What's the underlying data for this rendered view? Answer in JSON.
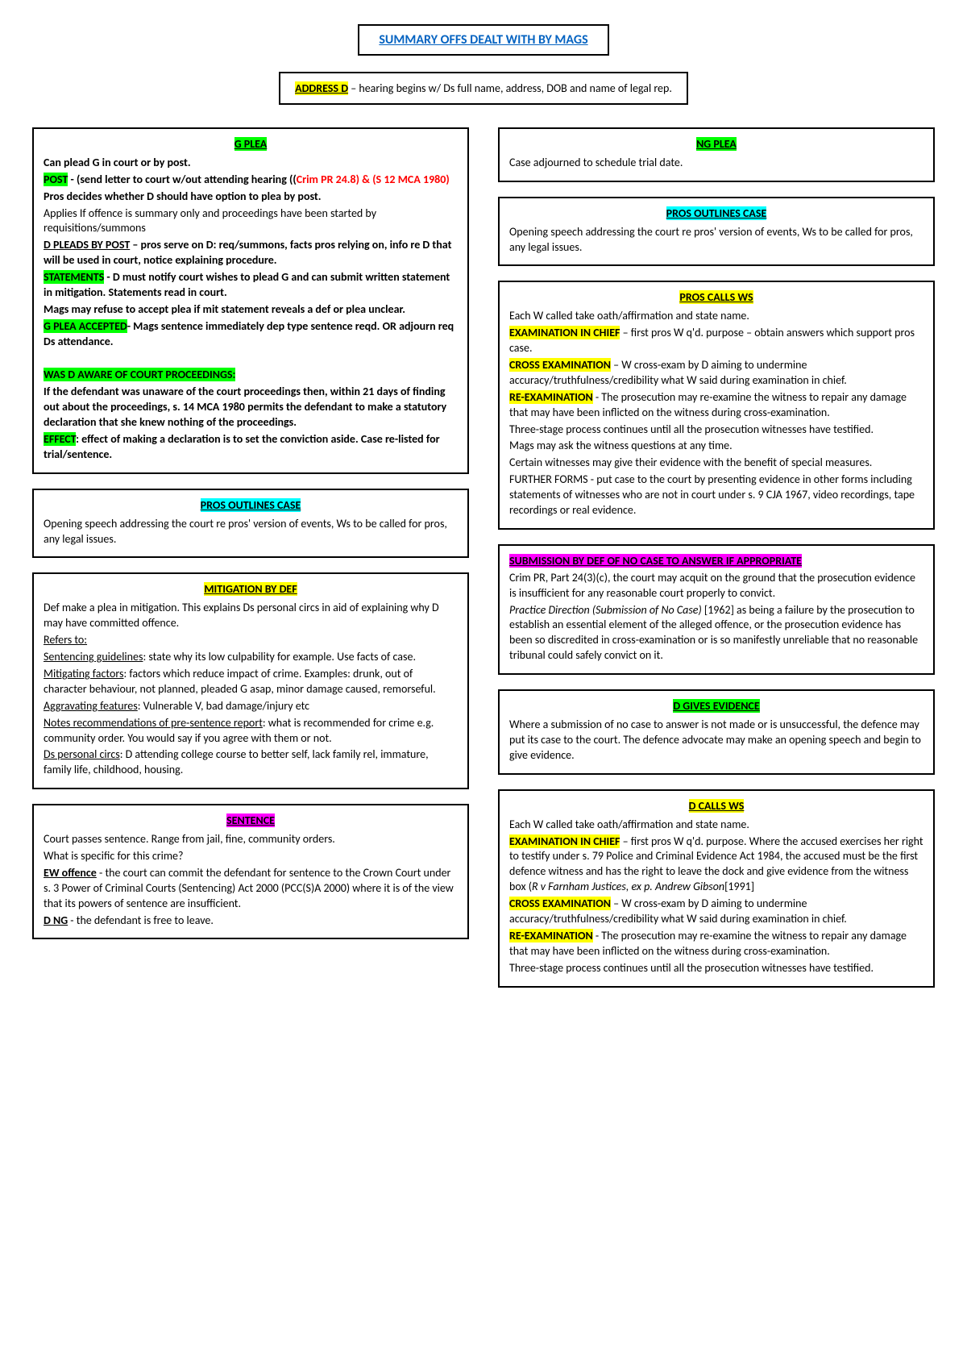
{
  "title": "SUMMARY OFFS DEALT WITH BY MAGS",
  "address": {
    "label": "ADDRESS D",
    "text": " – hearing begins w/ Ds full name, address, DOB and name of legal rep."
  },
  "gplea": {
    "h": "G PLEA",
    "L1": "Can plead G in court or by post.",
    "post_lbl": "POST",
    "post_a": " - (send letter to court w/out attending hearing ((",
    "post_red": "Crim PR 24.8) & (S 12 MCA 1980)",
    "L2": "Pros decides whether D should have option to plea by post.",
    "L3": "Applies If offence is summary only and proceedings have been started by requisitions/summons",
    "L4l": "D PLEADS BY POST",
    "L4": " – pros serve on D: req/summons, facts pros relying on, info re D that will be used in court, notice explaining procedure.",
    "stmt_lbl": "STATEMENTS",
    "stmt": " - D must notify court wishes to plead G and can submit written statement in mitigation. Statements read in court.",
    "L5": "Mags may refuse to accept plea if mit statement reveals a def or plea unclear.",
    "acc_lbl": "G PLEA ACCEPTED",
    "acc": "- Mags sentence immediately dep type sentence reqd. OR adjourn req Ds attendance.",
    "aware_h": "WAS D AWARE OF COURT PROCEEDINGS:",
    "aware1": "If the defendant was unaware of the court proceedings then, within 21 days of finding out about the proceedings, s. 14 MCA 1980 permits the defendant to make a statutory declaration that she knew nothing of the proceedings.",
    "eff_lbl": "EFFECT",
    "eff": ": effect of making a declaration is to set the conviction aside. Case re-listed for trial/sentence."
  },
  "pros_outlines_left": {
    "h": "PROS OUTLINES CASE",
    "t": "Opening speech addressing the court re pros' version of events, Ws to be called for pros, any legal issues."
  },
  "mitigation": {
    "h": "MITIGATION BY DEF",
    "L1": "Def make a plea in mitigation. This explains Ds personal circs in aid of explaining why D may have committed offence.",
    "L2": "Refers to:",
    "g1l": "Sentencing guidelines",
    "g1": ": state why its low culpability for example. Use facts of case.",
    "g2l": "Mitigating factors",
    "g2": ": factors which reduce impact of crime. Examples: drunk, out of character behaviour, not planned, pleaded G asap, minor damage caused, remorseful.",
    "g3l": "Aggravating features",
    "g3": ": Vulnerable V, bad damage/injury etc",
    "g4l": "Notes recommendations of pre-sentence report",
    "g4": ": what is recommended for crime e.g. community order. You would say if you agree with them or not.",
    "g5l": "Ds personal circs",
    "g5": ": D attending college course to better self, lack family rel, immature, family life, childhood, housing."
  },
  "sentence": {
    "h": "SENTENCE",
    "L1": "Court passes sentence. Range from jail, fine, community orders.",
    "L2": "What is specific for this crime?",
    "ewl": "EW offence",
    "ew": " - the court can commit the defendant for sentence to the Crown Court under s. 3 Power of Criminal Courts (Sentencing) Act 2000 (PCC(S)A 2000) where it is of the view that its powers of sentence are insufficient.",
    "dl": "D NG",
    "d": " -  the defendant is free to leave."
  },
  "ngplea": {
    "h": "NG PLEA",
    "t": "Case adjourned to schedule trial date."
  },
  "pros_outlines_right": {
    "h": "PROS OUTLINES CASE",
    "t": "Opening speech addressing the court re pros' version of events, Ws to be called for pros, any legal issues."
  },
  "pros_calls": {
    "h": "PROS CALLS WS",
    "L1": "Each W called take oath/affirmation and state name.",
    "exl": "EXAMINATION IN CHIEF",
    "ex": " – first pros W q'd. purpose – obtain answers which support pros case.",
    "cxl": "CROSS EXAMINATION",
    "cx": " – W cross-exam by D aiming to undermine accuracy/truthfulness/credibility what W said during examination in chief.",
    "rxl": "RE-EXAMINATION",
    "rx": " - The prosecution may re-examine the witness to repair any damage that may have been inflicted on the witness during cross-examination.",
    "L2": "Three-stage process continues until all the prosecution witnesses have testified.",
    "L3": "Mags may ask the witness questions at any time.",
    "L4": "Certain witnesses may give their evidence with the benefit of special measures.",
    "L5": "FURTHER FORMS - put case to the court by presenting evidence in other forms including statements of witnesses who are not in court under s. 9 CJA 1967, video recordings, tape recordings or real evidence."
  },
  "submission": {
    "h": "SUBMISSION BY DEF OF NO CASE TO ANSWER IF APPROPRIATE",
    "L1": "Crim PR, Part 24(3)(c), the court may acquit on the ground that the prosecution evidence is insufficient for any reasonable court properly to convict.",
    "L2i": "Practice Direction (Submission of No Case)",
    "L2": " [1962] as being a failure by the prosecution to establish an essential element of the alleged offence, or the prosecution evidence has been so discredited in cross-examination or is so manifestly unreliable that no reasonable tribunal could safely convict on it."
  },
  "dgives": {
    "h": "D GIVES EVIDENCE",
    "t": "Where a submission of no case to answer is not made or is unsuccessful, the defence may put its case to the court. The defence advocate may make an opening speech and begin to give evidence."
  },
  "dcalls": {
    "h": "D CALLS WS",
    "L1": "Each W called take oath/affirmation and state name.",
    "exl": "EXAMINATION IN CHIEF",
    "ex_a": " – first pros W q'd. purpose. Where the accused exercises her right to testify under s. 79 Police and Criminal Evidence Act 1984, the accused must be the first defence witness and has the right to leave the dock and give evidence from the witness box (",
    "ex_i": "R v Farnham Justices, ex p. Andrew Gibson",
    "ex_b": "[1991]",
    "cxl": "CROSS EXAMINATION",
    "cx": " – W cross-exam by D aiming to undermine accuracy/truthfulness/credibility what W said during examination in chief.",
    "rxl": "RE-EXAMINATION",
    "rx": " - The prosecution may re-examine the witness to repair any damage that may have been inflicted on the witness during cross-examination.",
    "L2": "Three-stage process continues until all the prosecution witnesses have testified."
  }
}
